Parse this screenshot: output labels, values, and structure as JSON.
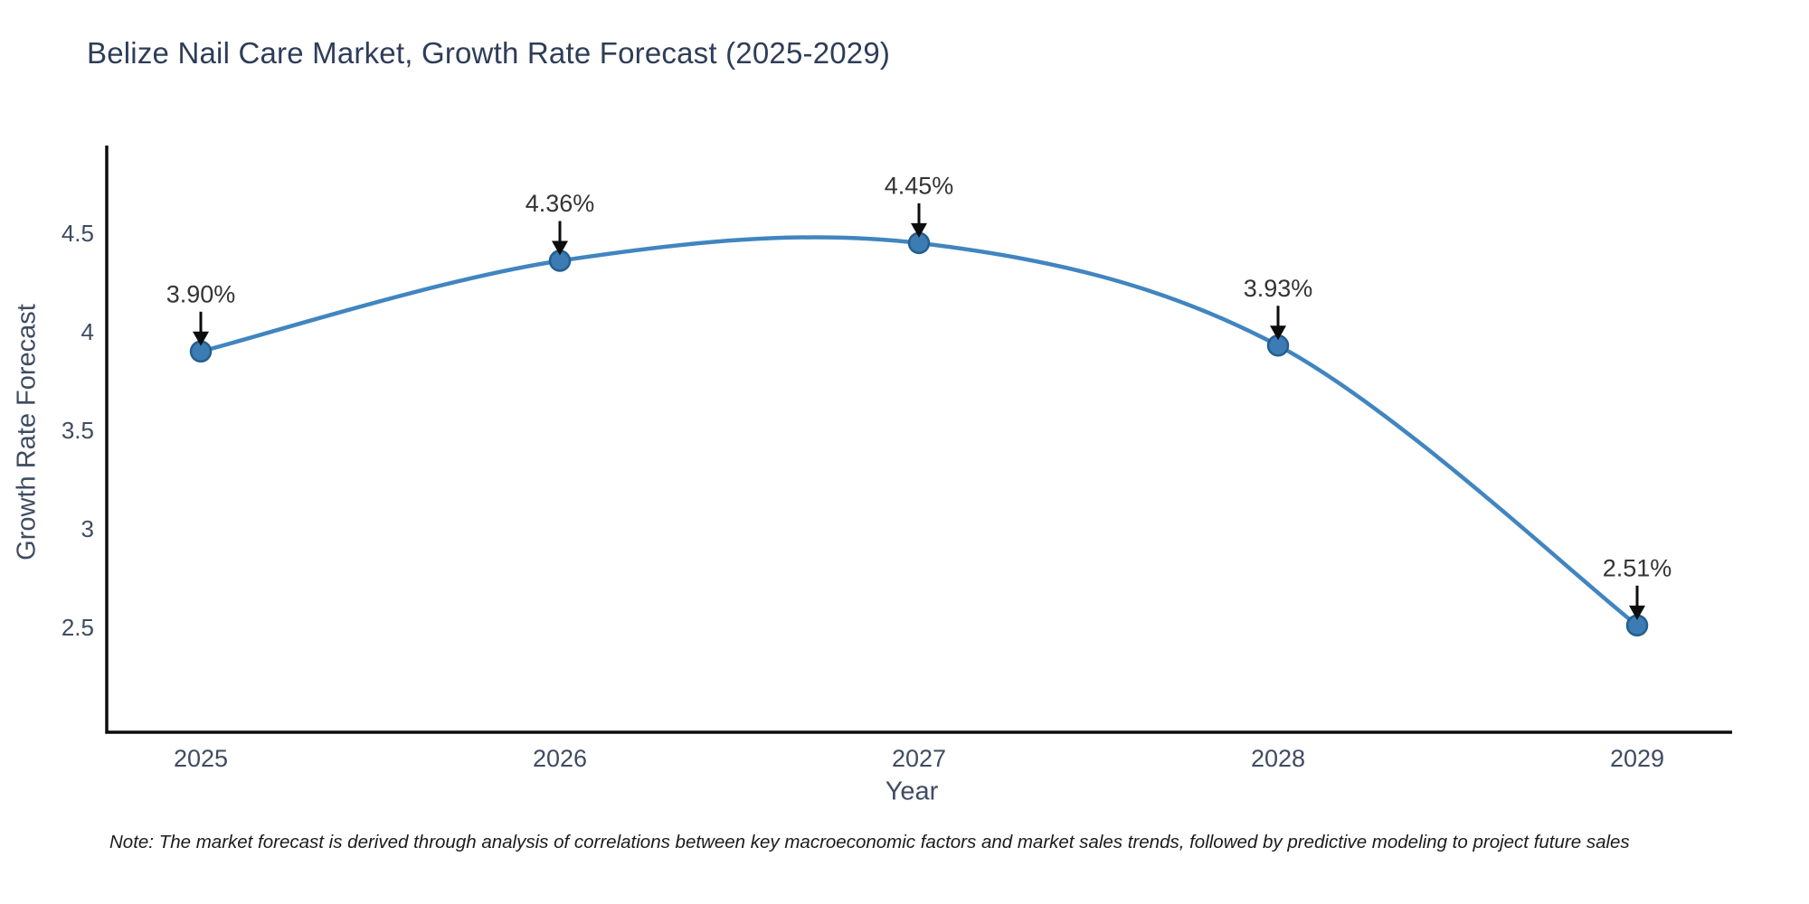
{
  "title": "Belize Nail Care Market, Growth Rate Forecast (2025-2029)",
  "note": "Note: The market forecast is derived through analysis of correlations between key macroeconomic factors and market sales trends, followed by predictive modeling to project future sales",
  "chart_data": {
    "type": "line",
    "title": "Belize Nail Care Market, Growth Rate Forecast (2025-2029)",
    "xlabel": "Year",
    "ylabel": "Growth Rate Forecast",
    "categories": [
      "2025",
      "2026",
      "2027",
      "2028",
      "2029"
    ],
    "values": [
      3.9,
      4.36,
      4.45,
      3.93,
      2.51
    ],
    "point_labels": [
      "3.90%",
      "4.36%",
      "4.45%",
      "3.93%",
      "2.51%"
    ],
    "yticks": [
      2.5,
      3,
      3.5,
      4,
      4.5
    ],
    "ytick_labels": [
      "2.5",
      "3",
      "3.5",
      "4",
      "4.5"
    ],
    "ylim": [
      2.0,
      5.0
    ],
    "grid": false,
    "legend": "none",
    "smooth": true,
    "annotations_style": "value-above-with-down-arrow",
    "colors": {
      "line": "#4185c0",
      "marker_fill": "#3d7bb5",
      "marker_edge": "#235f8e",
      "arrow": "#0d0d0d",
      "axis": "#0d0d0d",
      "title_text": "#2e3d59",
      "tick_text": "#3f4b61",
      "annotation_text": "#343434"
    }
  }
}
